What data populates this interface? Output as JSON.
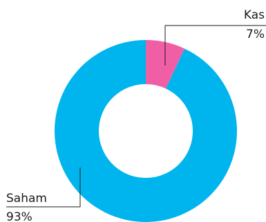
{
  "chart_data": {
    "type": "pie",
    "donut": true,
    "start_angle_deg": 0,
    "direction": "clockwise",
    "slices": [
      {
        "label": "Kas",
        "value": 7,
        "value_label": "7%",
        "color": "#F05FA5"
      },
      {
        "label": "Saham",
        "value": 93,
        "value_label": "93%",
        "color": "#00B5EE"
      }
    ],
    "title": "",
    "legend": "none"
  }
}
